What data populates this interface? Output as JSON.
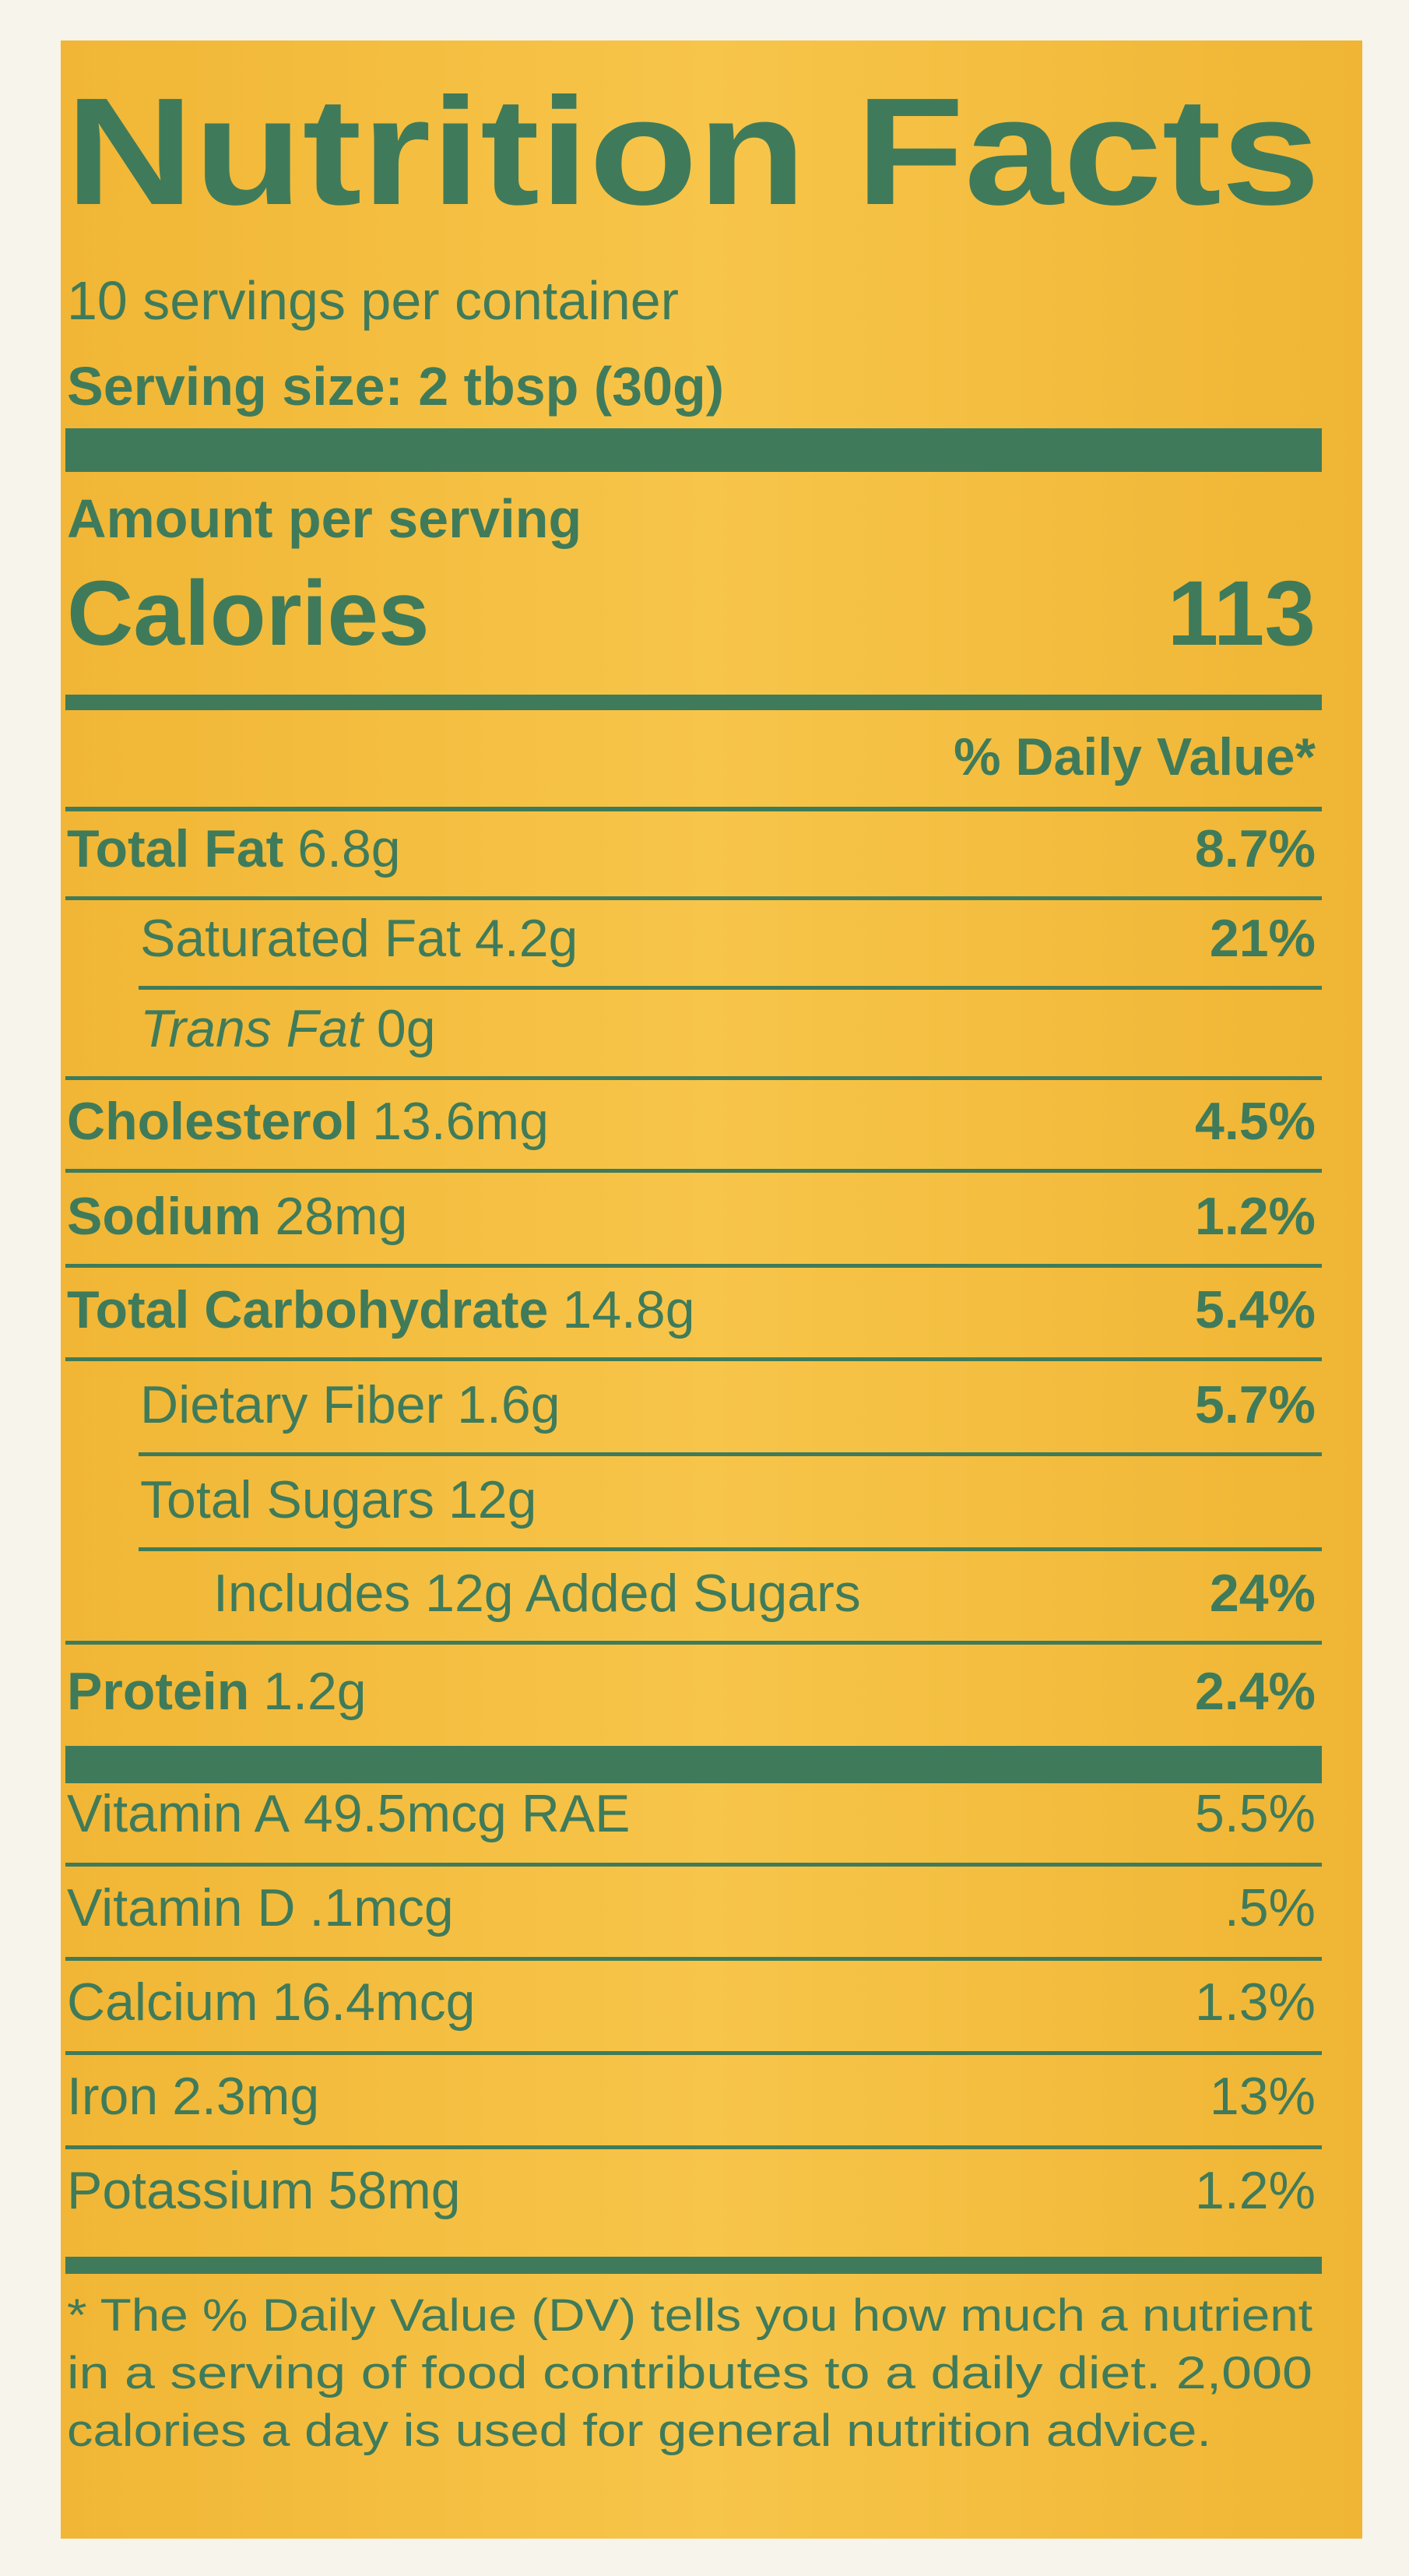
{
  "header": {
    "title": "Nutrition Facts",
    "servings": "10 servings per container",
    "serving_size": "Serving size: 2 tbsp (30g)"
  },
  "calories": {
    "caption": "Amount per serving",
    "label": "Calories",
    "value": "113"
  },
  "daily_value_header": "% Daily Value*",
  "nutrients": [
    {
      "name": "Total Fat",
      "amount": "6.8g",
      "dv": "8.7%"
    },
    {
      "name": "Saturated Fat",
      "amount": "4.2g",
      "dv": "21%"
    },
    {
      "name": "Trans Fat",
      "amount": "0g"
    },
    {
      "name": "Cholesterol",
      "amount": "13.6mg",
      "dv": "4.5%"
    },
    {
      "name": "Sodium",
      "amount": "28mg",
      "dv": "1.2%"
    },
    {
      "name": "Total Carbohydrate",
      "amount": "14.8g",
      "dv": "5.4%"
    },
    {
      "name": "Dietary Fiber",
      "amount": "1.6g",
      "dv": "5.7%"
    },
    {
      "name": "Total Sugars",
      "amount": "12g"
    },
    {
      "name": "Includes 12g Added Sugars",
      "dv": "24%"
    },
    {
      "name": "Protein",
      "amount": "1.2g",
      "dv": "2.4%"
    }
  ],
  "vitamins": [
    {
      "name": "Vitamin A",
      "amount": "49.5mcg RAE",
      "dv": "5.5%"
    },
    {
      "name": "Vitamin D",
      "amount": ".1mcg",
      "dv": ".5%"
    },
    {
      "name": "Calcium",
      "amount": "16.4mcg",
      "dv": "1.3%"
    },
    {
      "name": "Iron",
      "amount": "2.3mg",
      "dv": "13%"
    },
    {
      "name": "Potassium",
      "amount": "58mg",
      "dv": "1.2%"
    }
  ],
  "footnote": [
    "* The % Daily Value (DV) tells you how much a nutrient",
    "in a serving of food contributes to a daily diet. 2,000",
    "calories a day is used for general nutrition advice."
  ]
}
